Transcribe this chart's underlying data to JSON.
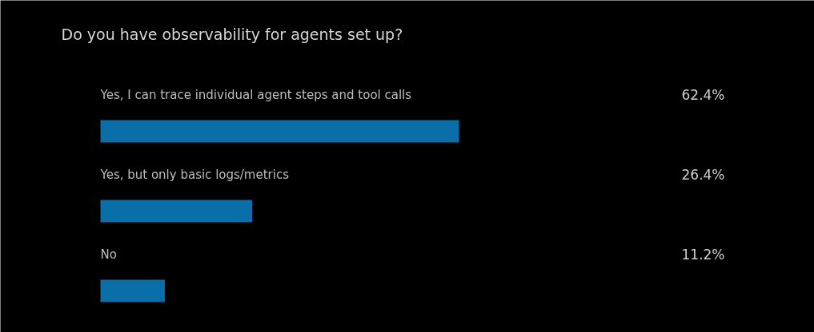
{
  "chart_data": {
    "type": "bar",
    "orientation": "horizontal",
    "title": "Do you have observability for agents set up?",
    "categories": [
      "Yes, I can trace individual agent steps and tool calls",
      "Yes, but only basic logs/metrics",
      "No"
    ],
    "values": [
      62.4,
      26.4,
      11.2
    ],
    "value_labels": [
      "62.4%",
      "26.4%",
      "11.2%"
    ],
    "color": "#0a6ea8",
    "grid": false
  }
}
